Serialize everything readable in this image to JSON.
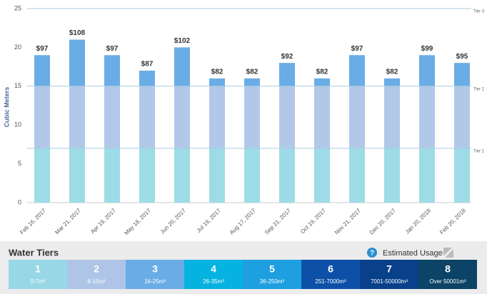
{
  "chart_data": {
    "type": "bar",
    "stacked": true,
    "ylabel": "Cubic Meters",
    "categories": [
      "Feb 16, 2017",
      "Mar 21, 2017",
      "Apr 19, 2017",
      "May 18, 2017",
      "Jun 20, 2017",
      "Jul 19, 2017",
      "Aug 17, 2017",
      "Sep 21, 2017",
      "Oct 19, 2017",
      "Nov 21, 2017",
      "Dec 20, 2017",
      "Jan 20, 2018",
      "Feb 20, 2018"
    ],
    "series": [
      {
        "color": "#9ddce6",
        "values": [
          7,
          7,
          7,
          7,
          7,
          7,
          7,
          7,
          7,
          7,
          7,
          7,
          7
        ]
      },
      {
        "color": "#b1c8e9",
        "values": [
          8,
          8,
          8,
          8,
          8,
          8,
          8,
          8,
          8,
          8,
          8,
          8,
          8
        ]
      },
      {
        "color": "#6aace6",
        "values": [
          4,
          6,
          4,
          2,
          5,
          1,
          1,
          3,
          1,
          4,
          1,
          4,
          3
        ]
      }
    ],
    "cost_labels": [
      "$97",
      "$108",
      "$97",
      "$87",
      "$102",
      "$82",
      "$82",
      "$92",
      "$82",
      "$97",
      "$82",
      "$99",
      "$95"
    ],
    "ylim": [
      0,
      25
    ],
    "yticks": [
      0,
      5,
      10,
      15,
      20,
      25
    ],
    "grid": false,
    "tier_lines": [
      {
        "value": 25,
        "label": "Tier 3"
      },
      {
        "value": 15,
        "label": "Tier 2"
      },
      {
        "value": 7,
        "label": "Tier 1"
      }
    ]
  },
  "legend_panel": {
    "title": "Water Tiers",
    "help_icon": "?",
    "estimated": "Estimated Usage",
    "tiers": [
      {
        "number": "1",
        "range": "0-7m³",
        "color": "#98d8e6"
      },
      {
        "number": "2",
        "range": "8-15m³",
        "color": "#aec5e8"
      },
      {
        "number": "3",
        "range": "16-25m³",
        "color": "#6aade6"
      },
      {
        "number": "4",
        "range": "26-35m³",
        "color": "#06b2e0"
      },
      {
        "number": "5",
        "range": "36-250m³",
        "color": "#1d9fe0"
      },
      {
        "number": "6",
        "range": "251-7000m³",
        "color": "#0c50a8"
      },
      {
        "number": "7",
        "range": "7001-50000m³",
        "color": "#08408a"
      },
      {
        "number": "8",
        "range": "Over 50001m³",
        "color": "#0b4466"
      }
    ]
  }
}
